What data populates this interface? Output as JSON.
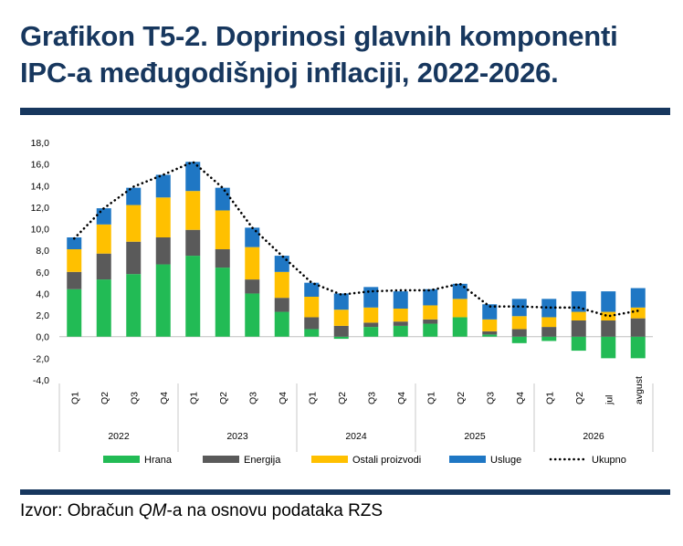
{
  "header": {
    "title_line1": "Grafikon T5-2. Doprinosi glavnih komponenti",
    "title_line2": "IPC-a međugodišnjoj inflaciji, 2022-2026."
  },
  "source": {
    "prefix": "Izvor: Obračun ",
    "italic": "QM",
    "suffix": "-a na osnovu podataka RZS"
  },
  "colors": {
    "title": "#17375e",
    "hrana": "#22bb55",
    "energija": "#5a5a5a",
    "ostali": "#ffc000",
    "usluge": "#1f77c4",
    "ukupno": "#000000"
  },
  "chart_data": {
    "type": "bar",
    "stacked": true,
    "ylim": [
      -4,
      18
    ],
    "yticks": [
      "-4,0",
      "-2,0",
      "0,0",
      "2,0",
      "4,0",
      "6,0",
      "8,0",
      "10,0",
      "12,0",
      "14,0",
      "16,0",
      "18,0"
    ],
    "categories": [
      "Q1",
      "Q2",
      "Q3",
      "Q4",
      "Q1",
      "Q2",
      "Q3",
      "Q4",
      "Q1",
      "Q2",
      "Q3",
      "Q4",
      "Q1",
      "Q2",
      "Q3",
      "Q4",
      "Q1",
      "Q2",
      "jul",
      "avgust"
    ],
    "years": [
      {
        "label": "2022",
        "count": 4
      },
      {
        "label": "2023",
        "count": 4
      },
      {
        "label": "2024",
        "count": 4
      },
      {
        "label": "2025",
        "count": 4
      },
      {
        "label": "2026",
        "count": 4
      }
    ],
    "series": [
      {
        "name": "Hrana",
        "values": [
          4.4,
          5.3,
          5.8,
          6.7,
          7.5,
          6.4,
          4.0,
          2.3,
          0.7,
          -0.2,
          0.9,
          1.0,
          1.2,
          1.8,
          0.2,
          -0.6,
          -0.4,
          -1.3,
          -2.0,
          -2.0
        ]
      },
      {
        "name": "Energija",
        "values": [
          1.6,
          2.4,
          3.0,
          2.5,
          2.4,
          1.7,
          1.3,
          1.3,
          1.1,
          1.0,
          0.4,
          0.4,
          0.4,
          0.0,
          0.3,
          0.7,
          0.9,
          1.5,
          1.5,
          1.7
        ]
      },
      {
        "name": "Ostali proizvodi",
        "values": [
          2.1,
          2.7,
          3.4,
          3.7,
          3.6,
          3.6,
          3.0,
          2.4,
          1.9,
          1.5,
          1.4,
          1.2,
          1.3,
          1.7,
          1.1,
          1.2,
          0.9,
          0.8,
          0.8,
          1.0
        ]
      },
      {
        "name": "Usluge",
        "values": [
          1.1,
          1.5,
          1.6,
          2.1,
          2.7,
          2.1,
          1.8,
          1.5,
          1.3,
          1.5,
          1.9,
          1.6,
          1.5,
          1.4,
          1.4,
          1.6,
          1.7,
          1.9,
          1.9,
          1.8
        ]
      }
    ],
    "line": {
      "name": "Ukupno",
      "values": [
        9.1,
        11.9,
        13.9,
        15.0,
        16.2,
        13.8,
        10.1,
        7.5,
        5.0,
        3.9,
        4.2,
        4.3,
        4.3,
        4.9,
        2.8,
        2.8,
        2.7,
        2.7,
        1.9,
        2.4
      ]
    },
    "legend_position": "bottom"
  }
}
